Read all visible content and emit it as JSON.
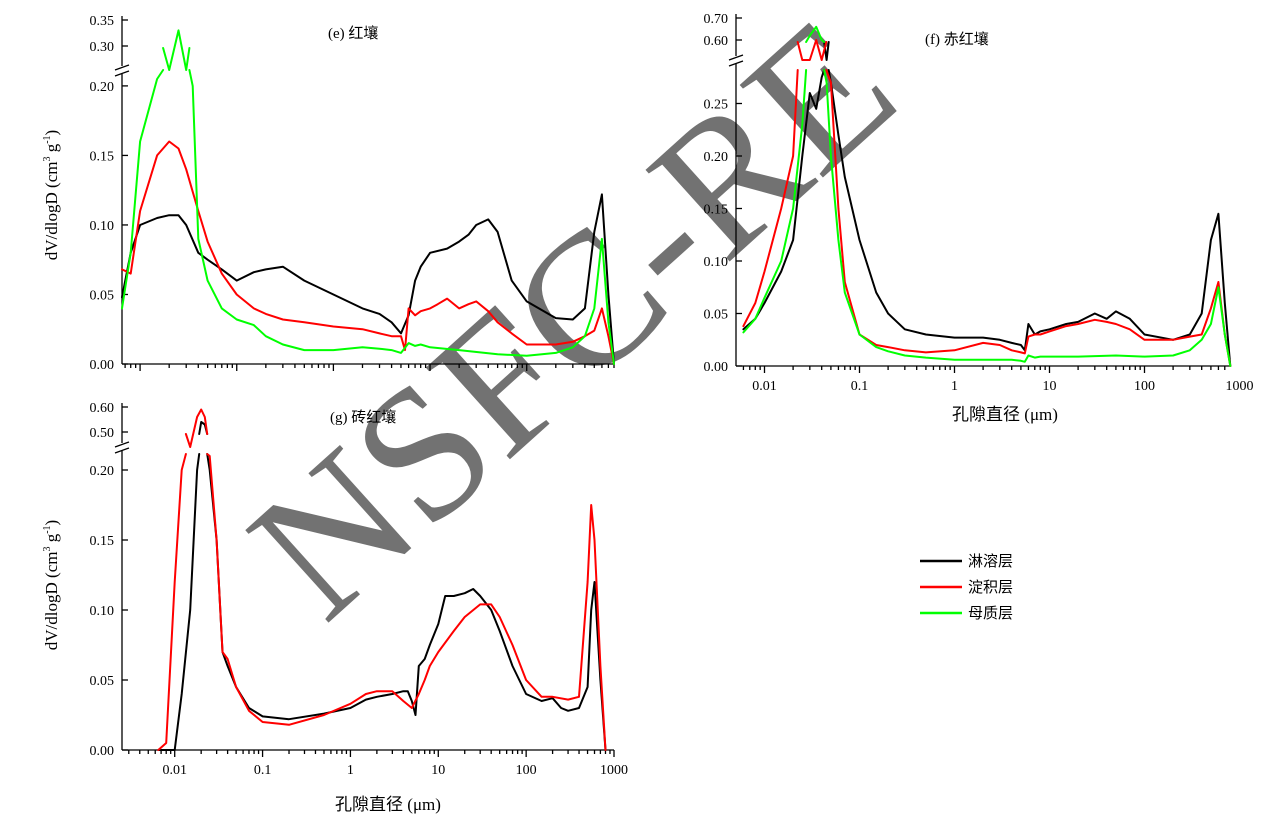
{
  "watermark": "NSFC-RE",
  "colors": {
    "leaching": "#000000",
    "deposition": "#ff0000",
    "parent": "#00ff00"
  },
  "legend": [
    {
      "key": "leaching",
      "label": "淋溶层"
    },
    {
      "key": "deposition",
      "label": "淀积层"
    },
    {
      "key": "parent",
      "label": "母质层"
    }
  ],
  "chart_data": [
    {
      "id": "e",
      "type": "line",
      "title": "(e) 红壤",
      "xlabel": "",
      "ylabel": "dV/dlogD (cm3 g-1)",
      "x_scale": "log",
      "xlim": [
        0.004,
        1000
      ],
      "ylim_lower": [
        0,
        0.21
      ],
      "ylim_upper": [
        0.3,
        0.35
      ],
      "y_ticks": [
        "0.00",
        "0.05",
        "0.10",
        "0.15",
        "0.20",
        "0.30",
        "0.35"
      ],
      "x_tick_labels": [],
      "series": [
        {
          "key": "leaching",
          "name": "淋溶层",
          "x": [
            0.0065,
            0.008,
            0.01,
            0.015,
            0.02,
            0.025,
            0.03,
            0.04,
            0.05,
            0.07,
            0.1,
            0.15,
            0.2,
            0.3,
            0.5,
            1,
            2,
            3,
            4,
            5,
            6,
            7,
            8,
            10,
            15,
            20,
            25,
            30,
            40,
            50,
            70,
            100,
            200,
            300,
            400,
            500,
            600,
            700,
            800
          ],
          "y": [
            0.048,
            0.08,
            0.1,
            0.105,
            0.107,
            0.107,
            0.1,
            0.08,
            0.075,
            0.068,
            0.06,
            0.066,
            0.068,
            0.07,
            0.06,
            0.05,
            0.04,
            0.036,
            0.03,
            0.022,
            0.035,
            0.06,
            0.07,
            0.08,
            0.083,
            0.088,
            0.093,
            0.1,
            0.104,
            0.095,
            0.06,
            0.045,
            0.033,
            0.032,
            0.04,
            0.095,
            0.122,
            0.05,
            0.0
          ]
        },
        {
          "key": "deposition",
          "name": "淀积层",
          "x": [
            0.0065,
            0.008,
            0.01,
            0.015,
            0.02,
            0.025,
            0.03,
            0.04,
            0.05,
            0.07,
            0.1,
            0.15,
            0.2,
            0.3,
            0.5,
            1,
            2,
            3,
            4,
            5,
            5.5,
            6,
            7,
            8,
            10,
            12,
            15,
            20,
            25,
            30,
            40,
            50,
            70,
            100,
            200,
            300,
            400,
            500,
            600,
            700,
            800
          ],
          "y": [
            0.068,
            0.065,
            0.11,
            0.15,
            0.16,
            0.155,
            0.14,
            0.11,
            0.088,
            0.065,
            0.05,
            0.04,
            0.036,
            0.032,
            0.03,
            0.027,
            0.025,
            0.022,
            0.02,
            0.02,
            0.01,
            0.04,
            0.035,
            0.038,
            0.04,
            0.043,
            0.047,
            0.04,
            0.043,
            0.045,
            0.038,
            0.03,
            0.022,
            0.014,
            0.014,
            0.016,
            0.02,
            0.024,
            0.04,
            0.02,
            0.0
          ]
        },
        {
          "key": "parent",
          "name": "母质层",
          "x": [
            0.0065,
            0.008,
            0.01,
            0.015,
            0.02,
            0.025,
            0.03,
            0.035,
            0.04,
            0.05,
            0.07,
            0.1,
            0.15,
            0.2,
            0.3,
            0.5,
            1,
            2,
            3,
            4,
            5,
            6,
            7,
            8,
            10,
            20,
            50,
            100,
            200,
            300,
            400,
            500,
            600,
            700,
            800
          ],
          "y": [
            0.04,
            0.08,
            0.16,
            0.205,
            0.29,
            0.33,
            0.29,
            0.2,
            0.09,
            0.06,
            0.04,
            0.032,
            0.028,
            0.02,
            0.014,
            0.01,
            0.01,
            0.012,
            0.011,
            0.01,
            0.008,
            0.015,
            0.013,
            0.014,
            0.012,
            0.01,
            0.007,
            0.006,
            0.008,
            0.012,
            0.02,
            0.04,
            0.09,
            0.03,
            0.0
          ]
        }
      ]
    },
    {
      "id": "f",
      "type": "line",
      "title": "(f) 赤红壤",
      "xlabel": "孔隙直径 (μm)",
      "ylabel": "",
      "x_scale": "log",
      "xlim": [
        0.004,
        1000
      ],
      "ylim_lower": [
        0,
        0.28
      ],
      "ylim_upper": [
        0.6,
        0.7
      ],
      "y_ticks": [
        "0.00",
        "0.05",
        "0.10",
        "0.15",
        "0.20",
        "0.25",
        "0.60",
        "0.70"
      ],
      "x_tick_labels": [
        "0.01",
        "0.1",
        "1",
        "10",
        "100",
        "1000"
      ],
      "series": [
        {
          "key": "leaching",
          "name": "淋溶层",
          "x": [
            0.006,
            0.008,
            0.01,
            0.015,
            0.02,
            0.025,
            0.03,
            0.035,
            0.04,
            0.045,
            0.05,
            0.06,
            0.07,
            0.1,
            0.15,
            0.2,
            0.3,
            0.5,
            1,
            2,
            3,
            4,
            5,
            5.5,
            6,
            7,
            8,
            10,
            15,
            20,
            30,
            40,
            50,
            70,
            100,
            200,
            300,
            400,
            500,
            600,
            700,
            800
          ],
          "y": [
            0.035,
            0.045,
            0.06,
            0.09,
            0.12,
            0.2,
            0.26,
            0.245,
            0.275,
            0.285,
            0.27,
            0.22,
            0.18,
            0.12,
            0.07,
            0.05,
            0.035,
            0.03,
            0.027,
            0.027,
            0.025,
            0.022,
            0.02,
            0.015,
            0.04,
            0.03,
            0.033,
            0.035,
            0.04,
            0.042,
            0.05,
            0.045,
            0.052,
            0.045,
            0.03,
            0.025,
            0.03,
            0.05,
            0.12,
            0.145,
            0.06,
            0.0
          ]
        },
        {
          "key": "deposition",
          "name": "淀积层",
          "x": [
            0.006,
            0.008,
            0.01,
            0.015,
            0.02,
            0.025,
            0.03,
            0.035,
            0.04,
            0.05,
            0.06,
            0.07,
            0.1,
            0.15,
            0.2,
            0.3,
            0.5,
            1,
            2,
            3,
            4,
            5,
            5.5,
            6,
            7,
            8,
            10,
            15,
            20,
            30,
            40,
            50,
            70,
            100,
            200,
            300,
            400,
            500,
            600,
            700,
            800
          ],
          "y": [
            0.038,
            0.06,
            0.09,
            0.15,
            0.2,
            0.5,
            0.59,
            0.6,
            0.5,
            0.27,
            0.15,
            0.08,
            0.03,
            0.02,
            0.018,
            0.015,
            0.013,
            0.015,
            0.022,
            0.02,
            0.015,
            0.013,
            0.012,
            0.028,
            0.03,
            0.03,
            0.033,
            0.038,
            0.04,
            0.044,
            0.042,
            0.04,
            0.035,
            0.025,
            0.025,
            0.028,
            0.03,
            0.055,
            0.08,
            0.03,
            0.0
          ]
        },
        {
          "key": "parent",
          "name": "母质层",
          "x": [
            0.006,
            0.008,
            0.01,
            0.015,
            0.02,
            0.025,
            0.03,
            0.035,
            0.04,
            0.045,
            0.05,
            0.06,
            0.07,
            0.1,
            0.15,
            0.2,
            0.3,
            0.5,
            1,
            2,
            3,
            4,
            5,
            5.5,
            6,
            7,
            8,
            10,
            20,
            50,
            100,
            200,
            300,
            400,
            500,
            600,
            700,
            800
          ],
          "y": [
            0.032,
            0.045,
            0.065,
            0.1,
            0.15,
            0.23,
            0.62,
            0.66,
            0.6,
            0.27,
            0.2,
            0.12,
            0.07,
            0.03,
            0.018,
            0.014,
            0.01,
            0.008,
            0.006,
            0.006,
            0.006,
            0.006,
            0.005,
            0.004,
            0.01,
            0.008,
            0.009,
            0.009,
            0.009,
            0.01,
            0.009,
            0.01,
            0.015,
            0.025,
            0.04,
            0.075,
            0.03,
            0.0
          ]
        }
      ]
    },
    {
      "id": "g",
      "type": "line",
      "title": "(g) 砖红壤",
      "xlabel": "孔隙直径 (μm)",
      "ylabel": "dV/dlogD (cm3 g-1)",
      "x_scale": "log",
      "xlim": [
        0.002,
        1000
      ],
      "ylim_lower": [
        0,
        0.21
      ],
      "ylim_upper": [
        0.5,
        0.6
      ],
      "y_ticks": [
        "0.00",
        "0.05",
        "0.10",
        "0.15",
        "0.20",
        "0.50",
        "0.60"
      ],
      "x_tick_labels": [
        "0.01",
        "0.1",
        "1",
        "10",
        "100",
        "1000"
      ],
      "series": [
        {
          "key": "leaching",
          "name": "淋溶层",
          "x": [
            0.0065,
            0.008,
            0.01,
            0.012,
            0.015,
            0.018,
            0.02,
            0.022,
            0.025,
            0.03,
            0.035,
            0.04,
            0.05,
            0.07,
            0.1,
            0.2,
            0.5,
            1,
            1.5,
            2,
            3,
            4,
            4.5,
            5,
            5.5,
            6,
            7,
            8,
            10,
            12,
            15,
            20,
            25,
            30,
            40,
            50,
            70,
            100,
            150,
            200,
            250,
            300,
            400,
            500,
            550,
            600,
            700,
            800
          ],
          "y": [
            0.0,
            0.0,
            0.0,
            0.04,
            0.1,
            0.2,
            0.54,
            0.53,
            0.2,
            0.15,
            0.07,
            0.06,
            0.045,
            0.03,
            0.024,
            0.022,
            0.026,
            0.03,
            0.036,
            0.038,
            0.04,
            0.042,
            0.042,
            0.035,
            0.025,
            0.06,
            0.065,
            0.075,
            0.09,
            0.11,
            0.11,
            0.112,
            0.115,
            0.11,
            0.1,
            0.085,
            0.06,
            0.04,
            0.035,
            0.037,
            0.03,
            0.028,
            0.03,
            0.045,
            0.1,
            0.12,
            0.05,
            0.0
          ]
        },
        {
          "key": "deposition",
          "name": "淀积层",
          "x": [
            0.0065,
            0.008,
            0.01,
            0.012,
            0.015,
            0.018,
            0.02,
            0.022,
            0.025,
            0.03,
            0.035,
            0.04,
            0.05,
            0.07,
            0.1,
            0.2,
            0.5,
            1,
            1.5,
            2,
            3,
            4,
            5,
            6,
            7,
            8,
            10,
            15,
            20,
            30,
            40,
            50,
            70,
            100,
            150,
            200,
            300,
            400,
            500,
            550,
            600,
            700,
            800
          ],
          "y": [
            0.0,
            0.005,
            0.12,
            0.2,
            0.3,
            0.56,
            0.59,
            0.56,
            0.21,
            0.15,
            0.07,
            0.065,
            0.045,
            0.028,
            0.02,
            0.018,
            0.025,
            0.033,
            0.04,
            0.042,
            0.042,
            0.035,
            0.03,
            0.04,
            0.05,
            0.06,
            0.07,
            0.085,
            0.095,
            0.104,
            0.104,
            0.095,
            0.075,
            0.05,
            0.038,
            0.038,
            0.036,
            0.038,
            0.12,
            0.175,
            0.15,
            0.06,
            0.0
          ]
        }
      ]
    }
  ]
}
